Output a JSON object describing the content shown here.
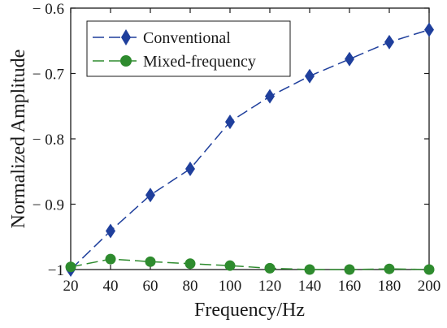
{
  "chart_data": {
    "type": "line",
    "title": "",
    "xlabel": "Frequency/Hz",
    "ylabel": "Normalized Amplitude",
    "xlim": [
      20,
      200
    ],
    "ylim": [
      -1.0,
      -0.6
    ],
    "x_ticks": [
      20,
      40,
      60,
      80,
      100,
      120,
      140,
      160,
      180,
      200
    ],
    "y_ticks": [
      -1.0,
      -0.9,
      -0.8,
      -0.7,
      -0.6
    ],
    "x_tick_labels": [
      "20",
      "40",
      "60",
      "80",
      "100",
      "120",
      "140",
      "160",
      "180",
      "200"
    ],
    "y_tick_labels": [
      "−1",
      "− 0.9",
      "− 0.8",
      "− 0.7",
      "− 0.6"
    ],
    "grid": false,
    "legend_position": "top-left",
    "x": [
      20,
      40,
      60,
      80,
      100,
      120,
      140,
      160,
      180,
      200
    ],
    "series": [
      {
        "name": "Conventional",
        "values": [
          -1.0,
          -0.941,
          -0.886,
          -0.846,
          -0.774,
          -0.735,
          -0.704,
          -0.678,
          -0.652,
          -0.633
        ],
        "color": "#1f3f9c",
        "marker": "diamond",
        "line_style": "dashed"
      },
      {
        "name": "Mixed-frequency",
        "values": [
          -0.996,
          -0.984,
          -0.988,
          -0.991,
          -0.994,
          -0.998,
          -1.0,
          -1.0,
          -0.999,
          -1.0
        ],
        "color": "#2e8b2e",
        "marker": "circle",
        "line_style": "dashed"
      }
    ]
  }
}
